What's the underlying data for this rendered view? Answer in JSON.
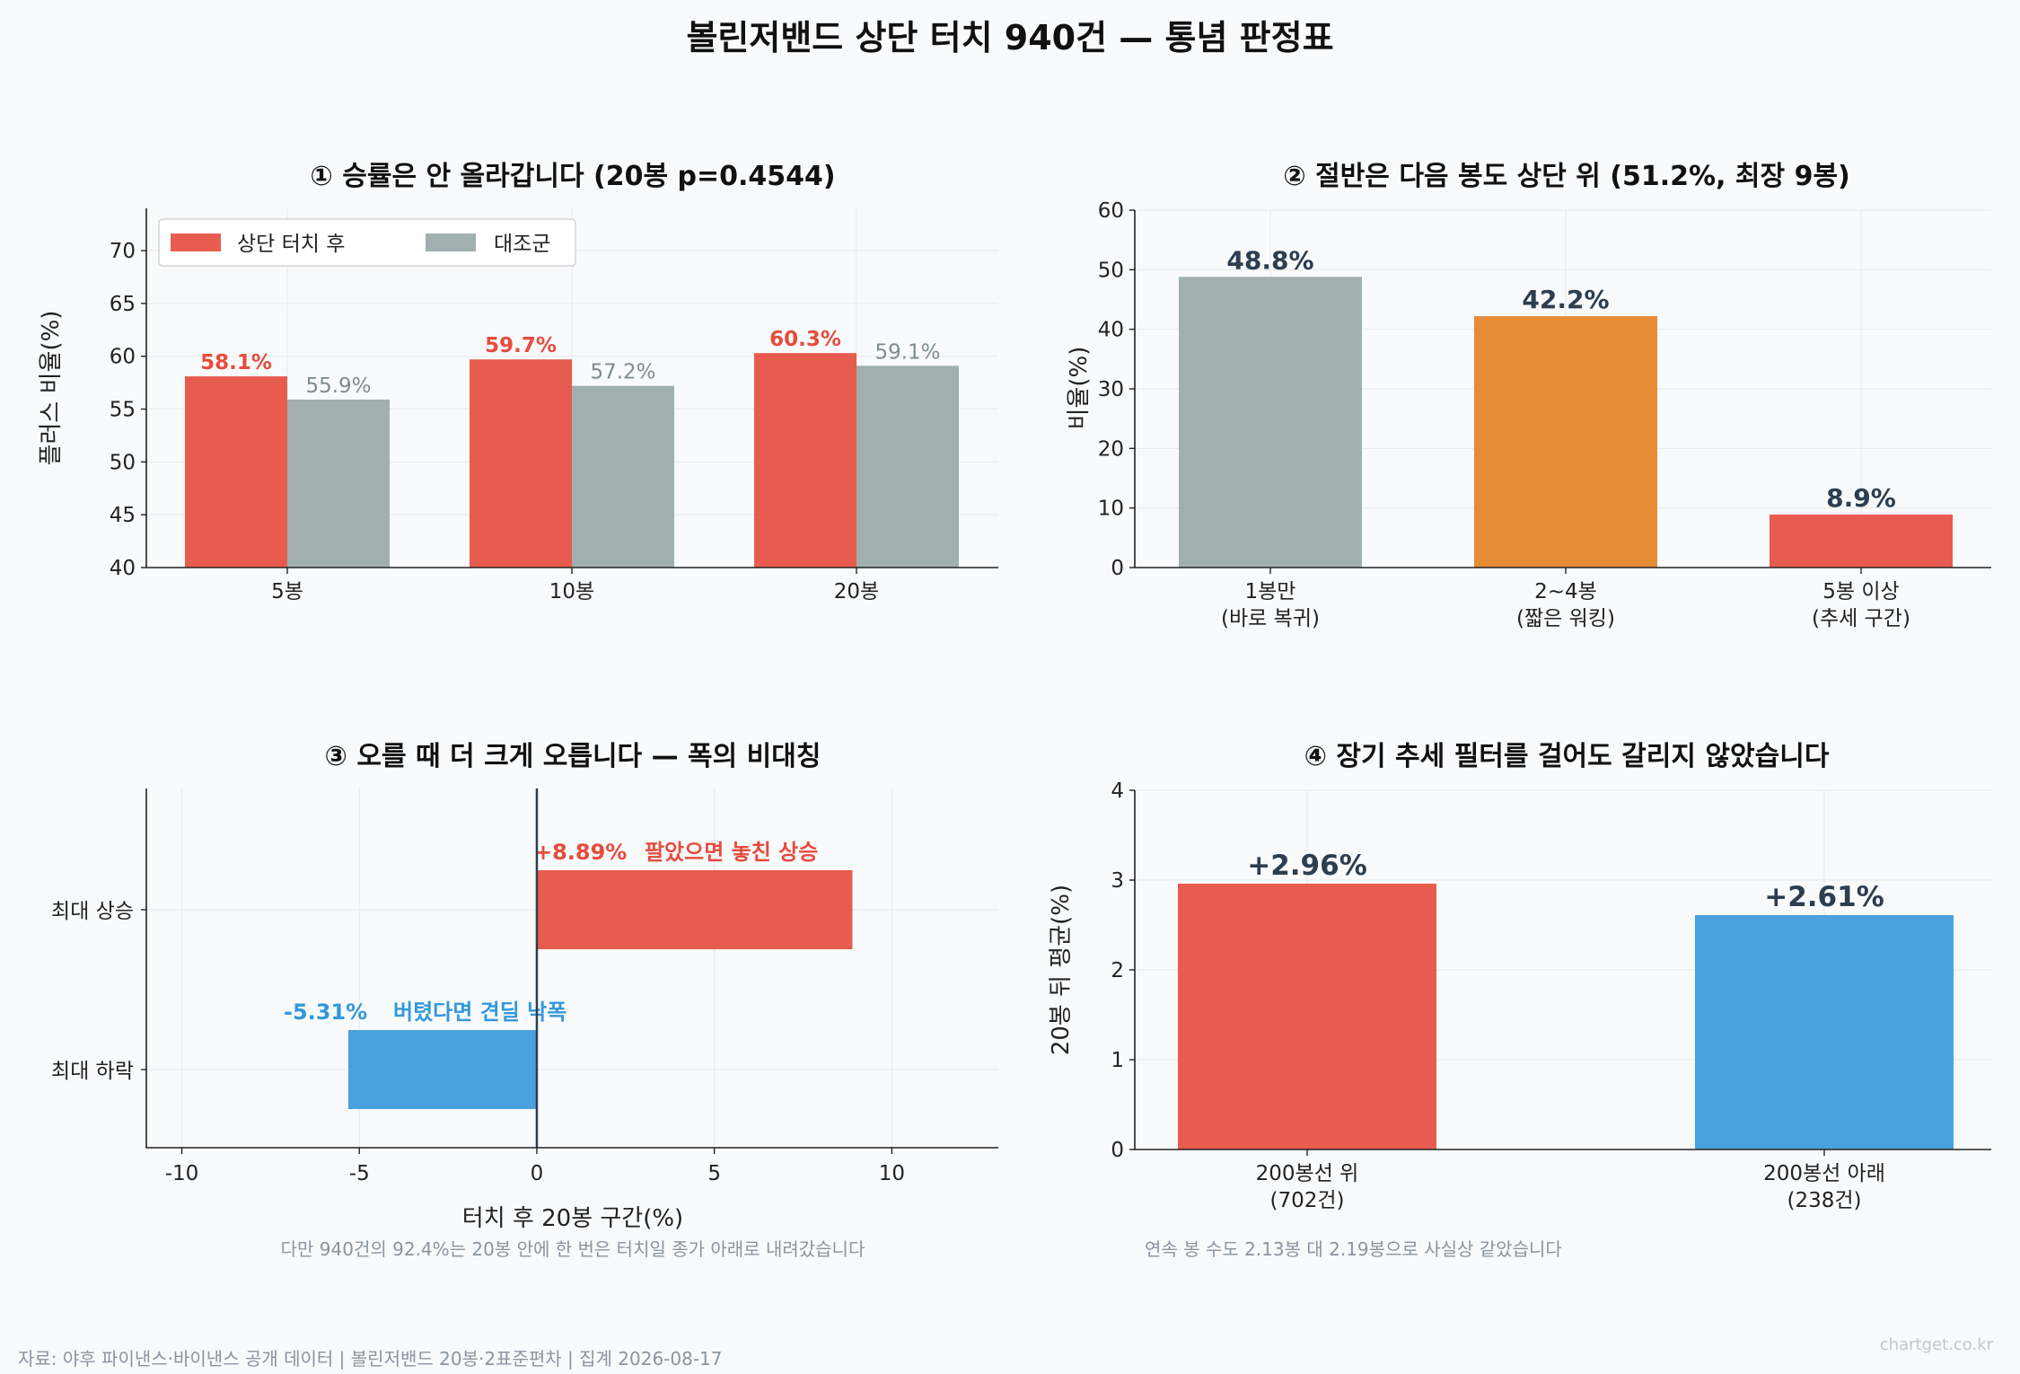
{
  "title": "볼린저밴드 상단 터치 940건 — 통념 판정표",
  "footer": "자료: 야후 파이낸스·바이낸스 공개 데이터 | 볼린저밴드 20봉·2표준편차 | 집계 2026-08-17",
  "brand": "chartget.co.kr",
  "colors": {
    "red": "#e85c4f",
    "gray": "#a1afaf",
    "orange": "#e68b36",
    "blue": "#4aa1dd",
    "dark": "#2c3e50",
    "redText": "#e74c3c",
    "grayText": "#7f8c8d",
    "blueText": "#3498db"
  },
  "chart_data": [
    {
      "type": "bar",
      "title": "① 승률은 안 올라갑니다 (20봉 p=0.4544)",
      "ylabel": "플러스 비율(%)",
      "xlabel": "",
      "categories": [
        "5봉",
        "10봉",
        "20봉"
      ],
      "series": [
        {
          "name": "상단 터치 후",
          "values": [
            58.1,
            59.7,
            60.3
          ],
          "labels": [
            "58.1%",
            "59.7%",
            "60.3%"
          ]
        },
        {
          "name": "대조군",
          "values": [
            55.9,
            57.2,
            59.1
          ],
          "labels": [
            "55.9%",
            "57.2%",
            "59.1%"
          ]
        }
      ],
      "ylim": [
        40,
        74
      ],
      "yticks": [
        "40",
        "45",
        "50",
        "55",
        "60",
        "65",
        "70"
      ],
      "grid": true,
      "legend": "top-left"
    },
    {
      "type": "bar",
      "title": "② 절반은 다음 봉도 상단 위 (51.2%, 최장 9봉)",
      "ylabel": "비율(%)",
      "xlabel": "",
      "categories": [
        [
          "1봉만",
          "(바로 복귀)"
        ],
        [
          "2~4봉",
          "(짧은 워킹)"
        ],
        [
          "5봉 이상",
          "(추세 구간)"
        ]
      ],
      "values": [
        48.8,
        42.2,
        8.9
      ],
      "labels": [
        "48.8%",
        "42.2%",
        "8.9%"
      ],
      "ylim": [
        0,
        60
      ],
      "yticks": [
        "0",
        "10",
        "20",
        "30",
        "40",
        "50",
        "60"
      ],
      "grid": true
    },
    {
      "type": "bar",
      "orientation": "horizontal",
      "title": "③ 오를 때 더 크게 오릅니다 — 폭의 비대칭",
      "xlabel": "터치 후 20봉 구간(%)",
      "ylabel": "",
      "categories": [
        "최대 상승",
        "최대 하락"
      ],
      "values": [
        8.89,
        -5.31
      ],
      "labels": [
        "+8.89%",
        "-5.31%"
      ],
      "annotations": [
        "팔았으면 놓친 상승",
        "버텼다면 견딜 낙폭"
      ],
      "xlim": [
        -11,
        13
      ],
      "xticks": [
        "-10",
        "-5",
        "0",
        "5",
        "10"
      ],
      "note": "다만 940건의 92.4%는 20봉 안에 한 번은 터치일 종가 아래로 내려갔습니다",
      "grid": true
    },
    {
      "type": "bar",
      "title": "④ 장기 추세 필터를 걸어도 갈리지 않았습니다",
      "ylabel": "20봉 뒤 평균(%)",
      "xlabel": "",
      "categories": [
        [
          "200봉선 위",
          "(702건)"
        ],
        [
          "200봉선 아래",
          "(238건)"
        ]
      ],
      "values": [
        2.96,
        2.61
      ],
      "labels": [
        "+2.96%",
        "+2.61%"
      ],
      "ylim": [
        0,
        4
      ],
      "yticks": [
        "0",
        "1",
        "2",
        "3",
        "4"
      ],
      "note": "연속 봉 수도 2.13봉 대 2.19봉으로 사실상 같았습니다",
      "grid": true
    }
  ]
}
